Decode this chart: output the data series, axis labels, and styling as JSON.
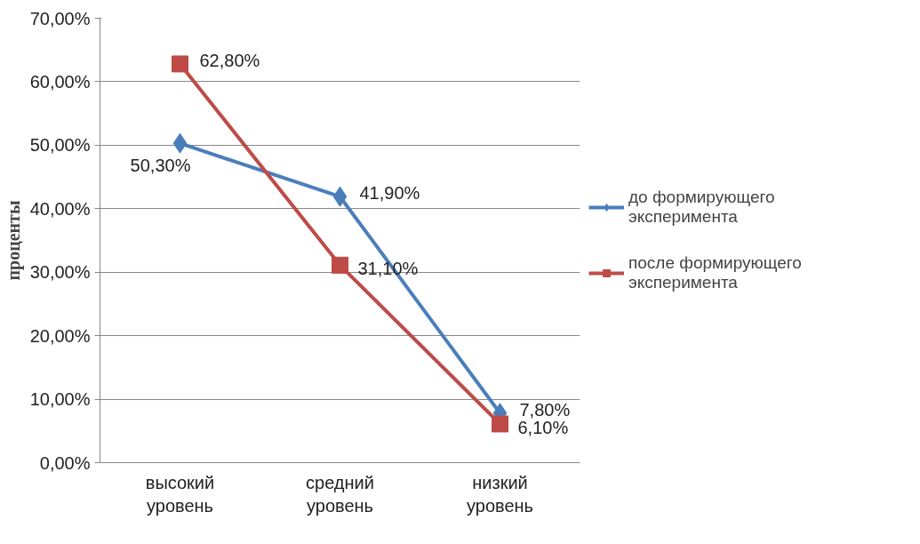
{
  "chart_data": {
    "type": "line",
    "ylabel": "проценты",
    "categories": [
      "высокий уровень",
      "средний уровень",
      "низкий уровень"
    ],
    "series": [
      {
        "name": "до формирующего эксперимента",
        "color": "#4a7ebb",
        "marker": "diamond",
        "values": [
          50.3,
          41.9,
          7.8
        ],
        "value_labels": [
          "50,30%",
          "41,90%",
          "7,80%"
        ]
      },
      {
        "name": "после формирующего эксперимента",
        "color": "#be4b48",
        "marker": "square",
        "values": [
          62.8,
          31.1,
          6.1
        ],
        "value_labels": [
          "62,80%",
          "31,10%",
          "6,10%"
        ]
      }
    ],
    "ylim": [
      0,
      70
    ],
    "yticks": [
      {
        "value": 0,
        "label": "0,00%"
      },
      {
        "value": 10,
        "label": "10,00%"
      },
      {
        "value": 20,
        "label": "20,00%"
      },
      {
        "value": 30,
        "label": "30,00%"
      },
      {
        "value": 40,
        "label": "40,00%"
      },
      {
        "value": 50,
        "label": "50,00%"
      },
      {
        "value": 60,
        "label": "60,00%"
      },
      {
        "value": 70,
        "label": "70,00%"
      }
    ],
    "grid": "y",
    "legend": "right",
    "line_style": "solid"
  }
}
